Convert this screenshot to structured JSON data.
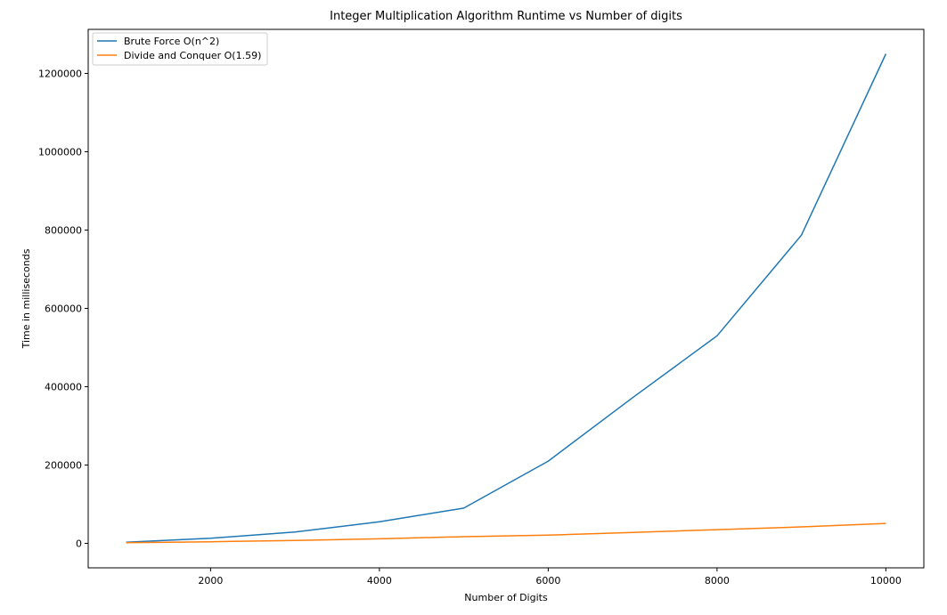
{
  "chart_data": {
    "type": "line",
    "title": "Integer Multiplication Algorithm Runtime vs Number of digits",
    "xlabel": "Number of Digits",
    "ylabel": "Time in milliseconds",
    "xlim": [
      550,
      10450
    ],
    "ylim": [
      -62500,
      1312500
    ],
    "xticks": [
      2000,
      4000,
      6000,
      8000,
      10000
    ],
    "yticks": [
      0,
      200000,
      400000,
      600000,
      800000,
      1000000,
      1200000
    ],
    "legend_position": "top-left",
    "grid": false,
    "series": [
      {
        "name": "Brute Force O(n^2)",
        "color": "#1f77b4",
        "x": [
          1000,
          2000,
          3000,
          4000,
          5000,
          6000,
          7000,
          8000,
          9000,
          10000
        ],
        "y": [
          3000,
          13000,
          29000,
          55000,
          90000,
          210000,
          372000,
          530000,
          787000,
          1250000
        ]
      },
      {
        "name": "Divide and Conquer O(1.59)",
        "color": "#ff7f0e",
        "x": [
          1000,
          2000,
          3000,
          4000,
          5000,
          6000,
          7000,
          8000,
          9000,
          10000
        ],
        "y": [
          1500,
          4000,
          7500,
          11500,
          17000,
          21000,
          28000,
          35000,
          42000,
          51000
        ]
      }
    ]
  }
}
